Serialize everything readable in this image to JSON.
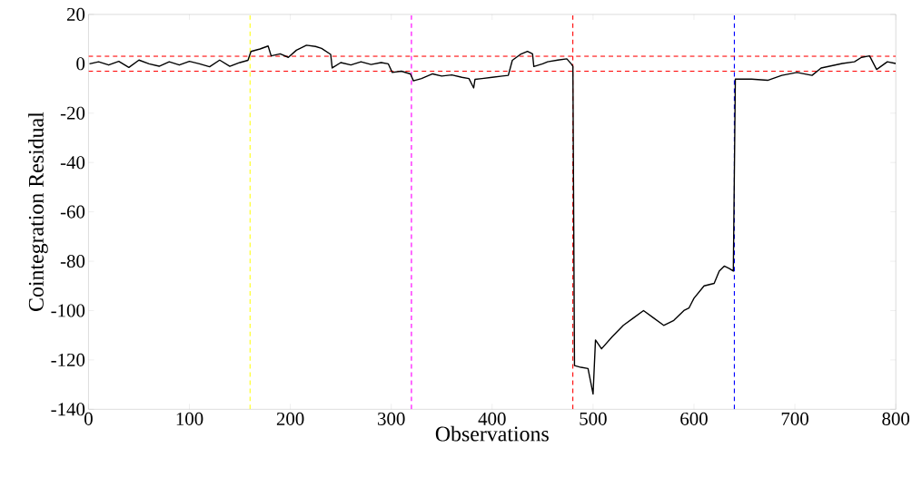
{
  "chart_data": {
    "type": "line",
    "xlabel": "Observations",
    "ylabel": "Cointegration Residual",
    "xlim": [
      0,
      800
    ],
    "ylim": [
      -140,
      20
    ],
    "xticks": [
      0,
      100,
      200,
      300,
      400,
      500,
      600,
      700,
      800
    ],
    "yticks": [
      -140,
      -120,
      -100,
      -80,
      -60,
      -40,
      -20,
      0,
      20
    ],
    "marker": "none",
    "line_style": "solid",
    "series": [
      {
        "color": "#000000",
        "x": [
          1,
          10,
          20,
          30,
          40,
          50,
          60,
          70,
          80,
          90,
          100,
          110,
          120,
          130,
          140,
          150,
          158,
          161,
          170,
          178,
          181,
          190,
          198,
          206,
          216,
          225,
          231,
          240,
          241.5,
          250,
          260,
          270,
          280,
          290,
          297,
          301,
          310,
          319,
          322,
          330,
          341,
          350,
          360,
          370,
          377,
          381.7,
          383,
          390,
          400,
          410,
          416,
          420,
          428,
          435,
          440,
          441.3,
          450,
          455,
          465,
          474,
          478.5,
          480,
          481.6,
          488,
          495,
          500,
          502.4,
          508.4,
          518.8,
          530,
          540,
          550,
          560,
          570,
          580,
          590,
          595,
          600,
          610,
          620,
          625,
          630,
          635,
          639,
          641,
          657,
          673,
          687,
          702,
          717,
          726,
          747,
          759,
          766,
          774,
          781,
          791.6,
          800
        ],
        "values": [
          0,
          0.8,
          -0.5,
          1,
          -1.5,
          1.5,
          0,
          -1,
          0.8,
          -0.5,
          1,
          0,
          -1.2,
          1.5,
          -1,
          0.5,
          1.4,
          5,
          6,
          7.2,
          3.2,
          4,
          2.6,
          5.5,
          7.5,
          7,
          6.2,
          3.8,
          -1.7,
          0.5,
          -0.5,
          0.8,
          -0.3,
          0.5,
          0,
          -3.5,
          -3,
          -4.1,
          -6.9,
          -6,
          -4.1,
          -5,
          -4.5,
          -5.5,
          -6,
          -9.8,
          -6.3,
          -6,
          -5.5,
          -5,
          -4.7,
          1.4,
          3.8,
          5,
          4,
          -1.1,
          0,
          0.8,
          1.5,
          2,
          -0.1,
          -1,
          -122.3,
          -123,
          -123.5,
          -133.8,
          -111.9,
          -115.5,
          -110.7,
          -106,
          -103,
          -100,
          -103,
          -106,
          -104,
          -100,
          -99,
          -95,
          -90,
          -89,
          -84,
          -82,
          -83,
          -84,
          -6.2,
          -6.2,
          -6.7,
          -4.7,
          -3.5,
          -4.7,
          -1.7,
          0.1,
          0.8,
          2.6,
          3.2,
          -2.3,
          0.8,
          0.1
        ]
      }
    ],
    "ref_lines": [
      {
        "axis": "x",
        "value": 160,
        "color": "#ffff00",
        "line_style": "dashed"
      },
      {
        "axis": "x",
        "value": 320,
        "color": "#ff00ff",
        "line_style": "dashed"
      },
      {
        "axis": "x",
        "value": 480,
        "color": "#ff0000",
        "line_style": "dashed"
      },
      {
        "axis": "x",
        "value": 640,
        "color": "#0000ff",
        "line_style": "dashed"
      },
      {
        "axis": "y",
        "value": 3,
        "color": "#ff0000",
        "line_style": "dashed"
      },
      {
        "axis": "y",
        "value": -3,
        "color": "#ff0000",
        "line_style": "dashed"
      }
    ]
  }
}
